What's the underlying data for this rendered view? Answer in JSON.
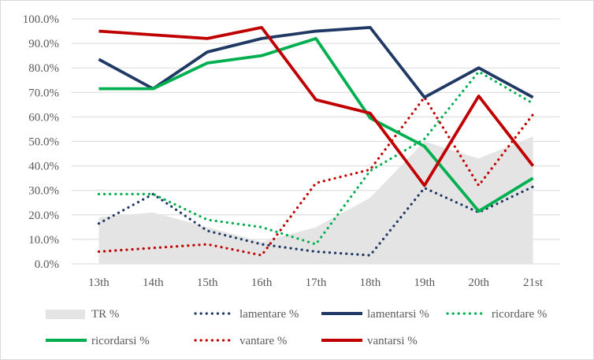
{
  "chart_data": {
    "type": "line",
    "categories": [
      "13th",
      "14th",
      "15th",
      "16th",
      "17th",
      "18th",
      "19th",
      "20th",
      "21st"
    ],
    "ylim": [
      0,
      100
    ],
    "yticks": [
      "0.0%",
      "10.0%",
      "20.0%",
      "30.0%",
      "40.0%",
      "50.0%",
      "60.0%",
      "70.0%",
      "80.0%",
      "90.0%",
      "100.0%"
    ],
    "grid": true,
    "legend_position": "bottom",
    "series": [
      {
        "name": "TR %",
        "kind": "area",
        "color": "#e4e4e4",
        "values": [
          19,
          21,
          15,
          9,
          15,
          27,
          50,
          43,
          52
        ]
      },
      {
        "name": "lamentare %",
        "kind": "dotted",
        "color": "#203864",
        "values": [
          16.5,
          28.5,
          13.5,
          8,
          5,
          3.5,
          31,
          21,
          31.5
        ]
      },
      {
        "name": "lamentarsi %",
        "kind": "solid",
        "color": "#203864",
        "values": [
          83.5,
          71.5,
          86.5,
          92,
          95,
          96.5,
          68,
          80,
          68
        ]
      },
      {
        "name": "ricordare %",
        "kind": "dotted",
        "color": "#00b050",
        "values": [
          28.5,
          28.5,
          18,
          15,
          8,
          38,
          51,
          78.5,
          65.5
        ]
      },
      {
        "name": "ricordarsi %",
        "kind": "solid",
        "color": "#00b050",
        "values": [
          71.5,
          71.5,
          82,
          85,
          92,
          59.5,
          48,
          21.5,
          35
        ]
      },
      {
        "name": "vantare %",
        "kind": "dotted",
        "color": "#c00000",
        "values": [
          5,
          6.5,
          8,
          3.5,
          33,
          38.5,
          68,
          32,
          61
        ]
      },
      {
        "name": "vantarsi %",
        "kind": "solid",
        "color": "#c00000",
        "values": [
          95,
          93.5,
          92,
          96.5,
          67,
          61.5,
          32,
          68.5,
          40
        ]
      }
    ]
  }
}
